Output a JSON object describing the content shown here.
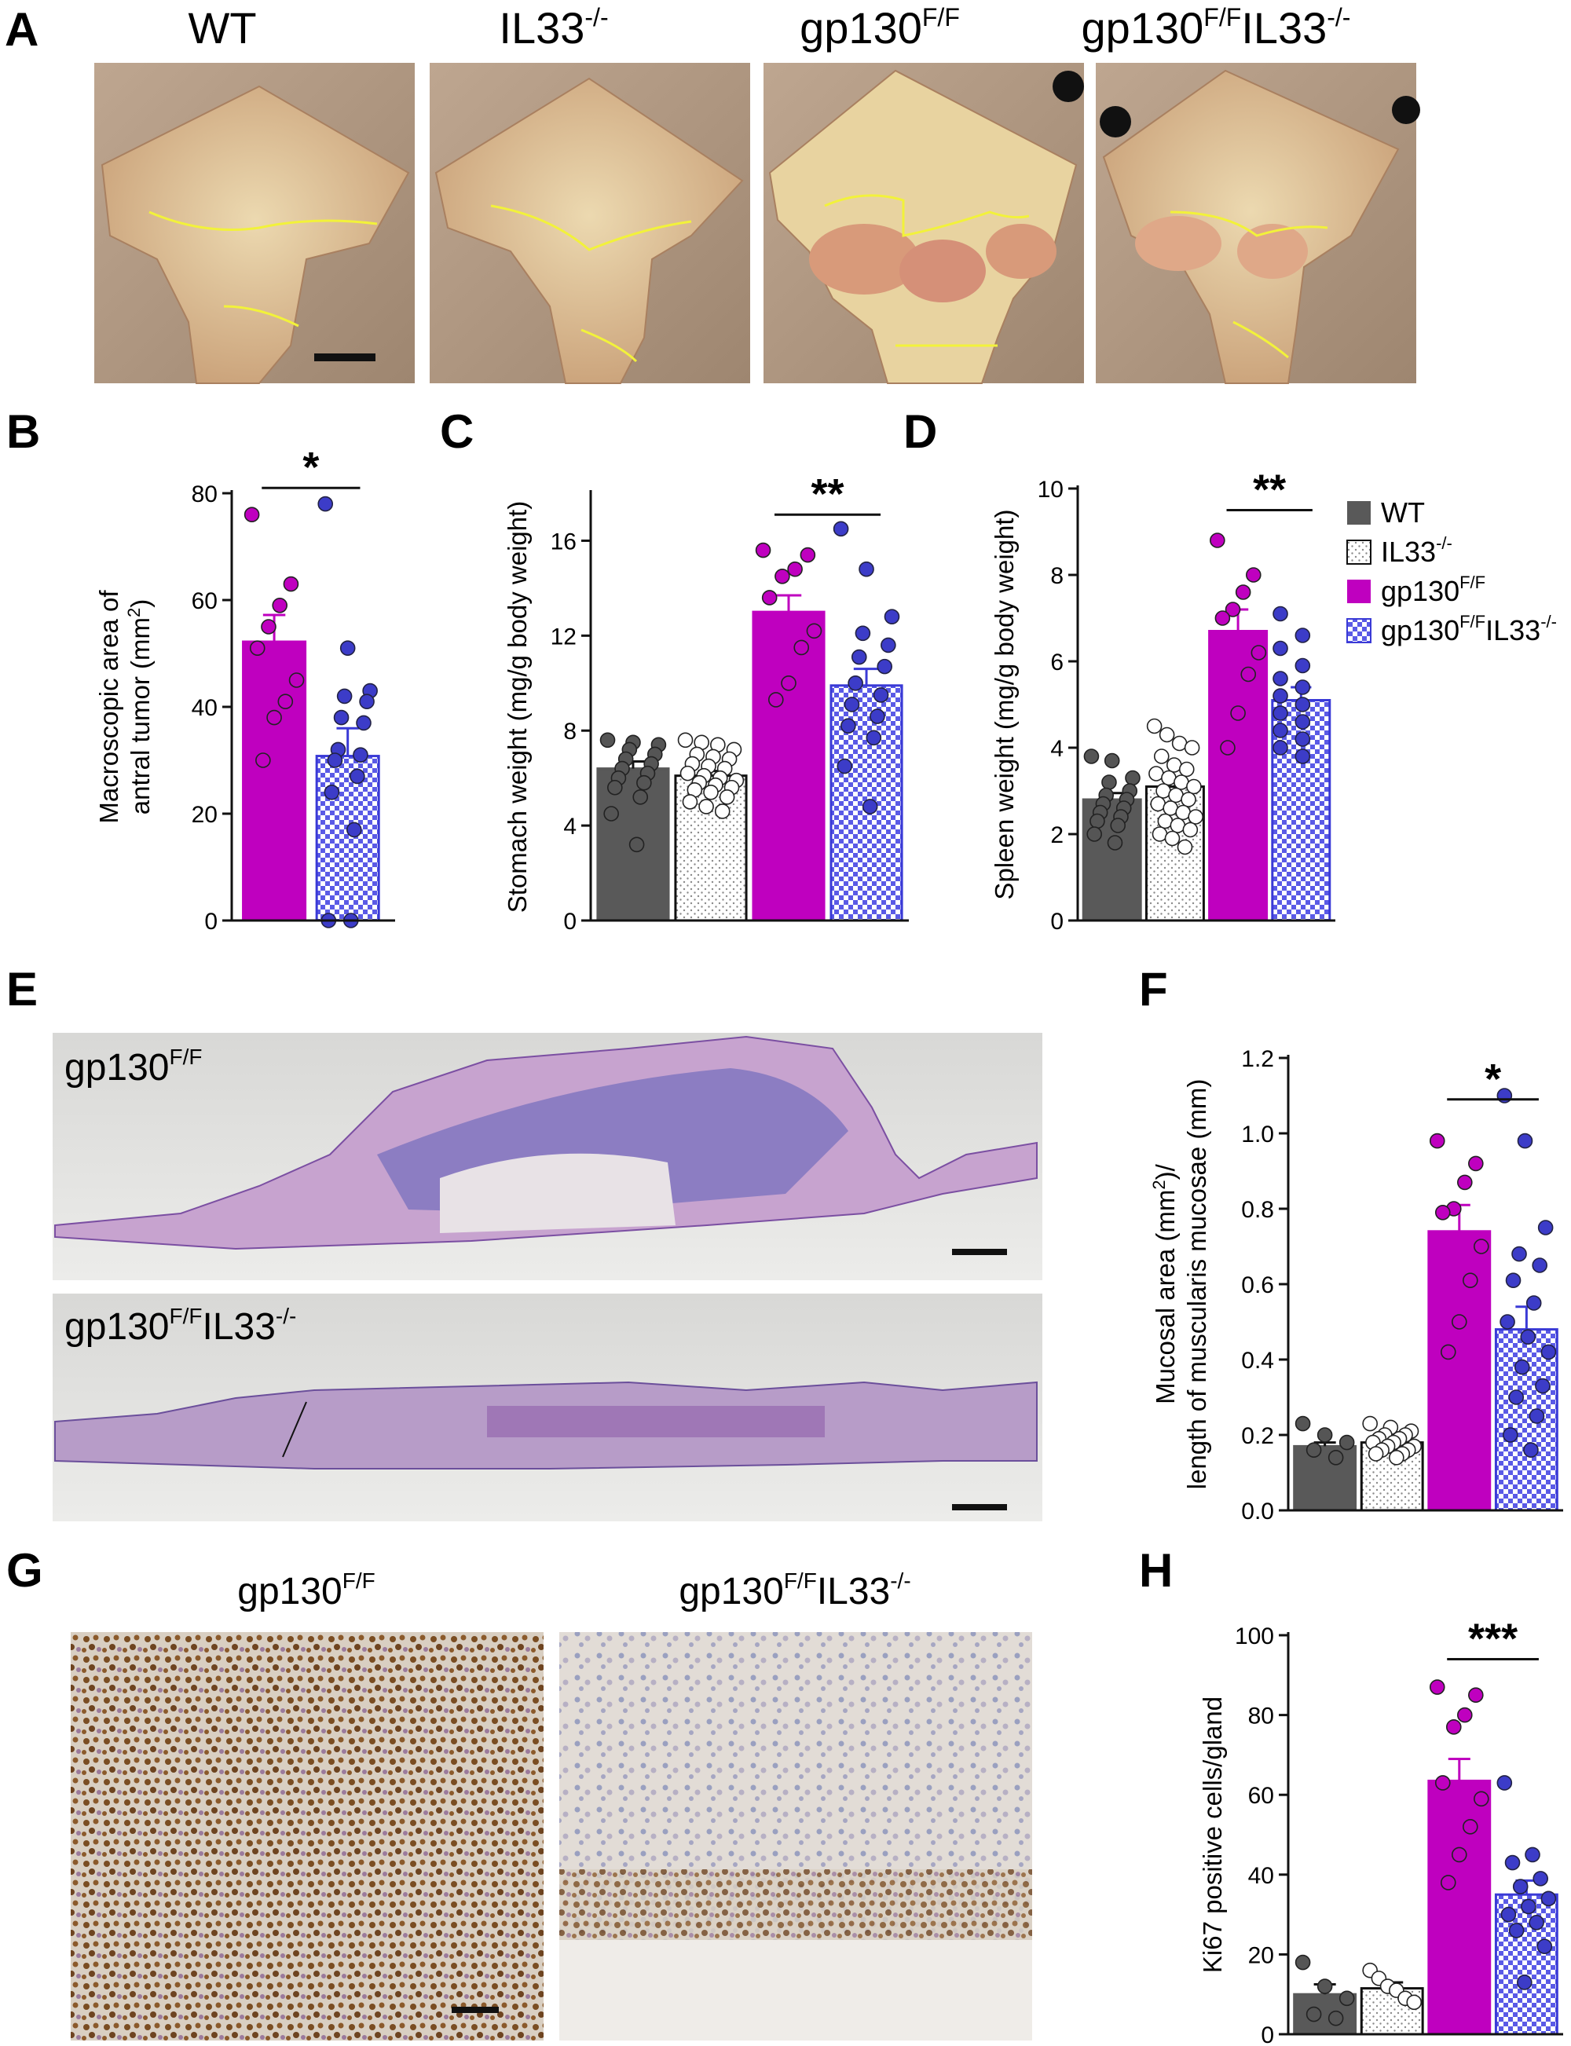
{
  "colors": {
    "wt": "#595959",
    "il33": "#ffffff",
    "gp130": "#bf00bf",
    "dbl": "#3a3ad6",
    "dbl_point": "#3c3cc8"
  },
  "panel_labels": [
    "A",
    "B",
    "C",
    "D",
    "E",
    "F",
    "G",
    "H"
  ],
  "panel_a": {
    "titles": [
      {
        "text": "WT",
        "sup": ""
      },
      {
        "text": "IL33",
        "sup": "-/-"
      },
      {
        "text": "gp130",
        "sup": "F/F"
      },
      {
        "text": "gp130",
        "sup": "F/F",
        "text2": "IL33",
        "sup2": "-/-"
      }
    ]
  },
  "panel_e": {
    "labels": [
      {
        "text": "gp130",
        "sup": "F/F"
      },
      {
        "text": "gp130",
        "sup": "F/F",
        "text2": "IL33",
        "sup2": "-/-"
      }
    ]
  },
  "panel_g": {
    "labels": [
      {
        "text": "gp130",
        "sup": "F/F"
      },
      {
        "text": "gp130",
        "sup": "F/F",
        "text2": "IL33",
        "sup2": "-/-"
      }
    ]
  },
  "legend": [
    {
      "key": "wt",
      "text": "WT",
      "sup": ""
    },
    {
      "key": "il33",
      "text": "IL33",
      "sup": "-/-"
    },
    {
      "key": "gp130",
      "text": "gp130",
      "sup": "F/F"
    },
    {
      "key": "dbl",
      "text": "gp130",
      "sup": "F/F",
      "text2": "IL33",
      "sup2": "-/-"
    }
  ],
  "chart_data": [
    {
      "panel": "B",
      "type": "bar",
      "ylabel_lines": [
        {
          "text": "Macroscopic area of"
        },
        {
          "text": "antral tumor (mm",
          "sup": "2",
          "tail": ")"
        }
      ],
      "ylim": [
        0,
        80
      ],
      "yticks": [
        0,
        20,
        40,
        60,
        80
      ],
      "tick_labels": [
        "0",
        "20",
        "40",
        "60",
        "80"
      ],
      "series": [
        {
          "key": "gp130",
          "mean": 52.2,
          "sem": 5.0,
          "points": [
            76,
            63,
            59,
            55,
            51,
            45,
            41,
            38,
            30
          ]
        },
        {
          "key": "dbl",
          "mean": 30.8,
          "sem": 5.2,
          "points": [
            78,
            51,
            43,
            42,
            41,
            38,
            37,
            32,
            31,
            30,
            27,
            24,
            17,
            0,
            0
          ]
        }
      ],
      "significance": {
        "from": 0,
        "to": 1,
        "stars": "*",
        "y": 81
      }
    },
    {
      "panel": "C",
      "type": "bar",
      "ylabel_lines": [
        {
          "text": "Stomach weight (mg/g body weight)"
        }
      ],
      "ylim": [
        0,
        18
      ],
      "yticks": [
        0,
        4,
        8,
        12,
        16
      ],
      "tick_labels": [
        "0",
        "4",
        "8",
        "12",
        "16"
      ],
      "series": [
        {
          "key": "wt",
          "mean": 6.4,
          "sem": 0.3,
          "points": [
            7.6,
            7.5,
            7.4,
            7.2,
            7.0,
            6.8,
            6.6,
            6.4,
            6.2,
            6.0,
            5.8,
            5.6,
            5.2,
            4.5,
            3.2
          ]
        },
        {
          "key": "il33",
          "mean": 6.1,
          "sem": 0.2,
          "points": [
            7.6,
            7.5,
            7.4,
            7.2,
            7.0,
            6.9,
            6.8,
            6.6,
            6.5,
            6.4,
            6.2,
            6.1,
            6.0,
            5.9,
            5.8,
            5.7,
            5.6,
            5.5,
            5.4,
            5.2,
            5.0,
            4.8,
            4.6
          ]
        },
        {
          "key": "gp130",
          "mean": 13.0,
          "sem": 0.7,
          "points": [
            15.6,
            15.4,
            14.8,
            14.5,
            13.6,
            12.2,
            11.5,
            10.0,
            9.3
          ]
        },
        {
          "key": "dbl",
          "mean": 9.9,
          "sem": 0.7,
          "points": [
            16.5,
            14.8,
            12.8,
            12.1,
            11.6,
            11.1,
            10.7,
            10.0,
            9.5,
            9.1,
            8.6,
            8.2,
            7.7,
            6.5,
            4.8
          ]
        }
      ],
      "significance": {
        "from": 2,
        "to": 3,
        "stars": "**",
        "y": 17.1
      }
    },
    {
      "panel": "D",
      "type": "bar",
      "ylabel_lines": [
        {
          "text": "Spleen weight (mg/g body weight)"
        }
      ],
      "ylim": [
        0,
        10
      ],
      "yticks": [
        0,
        2,
        4,
        6,
        8,
        10
      ],
      "tick_labels": [
        "0",
        "2",
        "4",
        "6",
        "8",
        "10"
      ],
      "series": [
        {
          "key": "wt",
          "mean": 2.8,
          "sem": 0.15,
          "points": [
            3.8,
            3.7,
            3.3,
            3.2,
            3.0,
            2.9,
            2.8,
            2.7,
            2.6,
            2.5,
            2.4,
            2.3,
            2.2,
            2.0,
            1.8
          ]
        },
        {
          "key": "il33",
          "mean": 3.1,
          "sem": 0.15,
          "points": [
            4.5,
            4.3,
            4.1,
            4.0,
            3.8,
            3.6,
            3.5,
            3.4,
            3.3,
            3.2,
            3.1,
            3.0,
            2.9,
            2.8,
            2.7,
            2.6,
            2.5,
            2.4,
            2.3,
            2.2,
            2.1,
            2.0,
            1.9,
            1.7
          ]
        },
        {
          "key": "gp130",
          "mean": 6.7,
          "sem": 0.5,
          "points": [
            8.8,
            8.0,
            7.6,
            7.2,
            7.0,
            6.2,
            5.7,
            4.8,
            4.0
          ]
        },
        {
          "key": "dbl",
          "mean": 5.1,
          "sem": 0.3,
          "points": [
            7.1,
            6.6,
            6.3,
            5.9,
            5.6,
            5.4,
            5.2,
            5.0,
            4.8,
            4.6,
            4.4,
            4.2,
            4.0,
            3.8
          ]
        }
      ],
      "significance": {
        "from": 2,
        "to": 3,
        "stars": "**",
        "y": 9.5
      }
    },
    {
      "panel": "F",
      "type": "bar",
      "ylabel_lines": [
        {
          "text": "Mucosal area (mm",
          "sup": "2",
          "tail": ")/"
        },
        {
          "text": "length of muscularis mucosae (mm)"
        }
      ],
      "ylim": [
        0,
        1.2
      ],
      "yticks": [
        0,
        0.2,
        0.4,
        0.6,
        0.8,
        1.0,
        1.2
      ],
      "tick_labels": [
        "0.0",
        "0.2",
        "0.4",
        "0.6",
        "0.8",
        "1.0",
        "1.2"
      ],
      "series": [
        {
          "key": "wt",
          "mean": 0.17,
          "sem": 0.01,
          "points": [
            0.23,
            0.2,
            0.18,
            0.16,
            0.14
          ]
        },
        {
          "key": "il33",
          "mean": 0.18,
          "sem": 0.01,
          "points": [
            0.23,
            0.22,
            0.21,
            0.2,
            0.2,
            0.19,
            0.19,
            0.18,
            0.18,
            0.17,
            0.17,
            0.16,
            0.16,
            0.15,
            0.15,
            0.14
          ]
        },
        {
          "key": "gp130",
          "mean": 0.74,
          "sem": 0.07,
          "points": [
            0.98,
            0.92,
            0.87,
            0.8,
            0.79,
            0.7,
            0.61,
            0.5,
            0.42
          ]
        },
        {
          "key": "dbl",
          "mean": 0.48,
          "sem": 0.06,
          "points": [
            1.1,
            0.98,
            0.75,
            0.68,
            0.65,
            0.61,
            0.55,
            0.5,
            0.46,
            0.42,
            0.38,
            0.33,
            0.3,
            0.25,
            0.2,
            0.16
          ]
        }
      ],
      "significance": {
        "from": 2,
        "to": 3,
        "stars": "*",
        "y": 1.09
      }
    },
    {
      "panel": "H",
      "type": "bar",
      "ylabel_lines": [
        {
          "text": "Ki67 positive cells/gland"
        }
      ],
      "ylim": [
        0,
        100
      ],
      "yticks": [
        0,
        20,
        40,
        60,
        80,
        100
      ],
      "tick_labels": [
        "0",
        "20",
        "40",
        "60",
        "80",
        "100"
      ],
      "series": [
        {
          "key": "wt",
          "mean": 10,
          "sem": 2.5,
          "points": [
            18,
            12,
            9,
            5,
            4
          ]
        },
        {
          "key": "il33",
          "mean": 11.5,
          "sem": 1.5,
          "points": [
            16,
            14,
            12,
            11,
            9,
            8
          ]
        },
        {
          "key": "gp130",
          "mean": 63.5,
          "sem": 5.5,
          "points": [
            87,
            85,
            80,
            77,
            63,
            59,
            52,
            45,
            38
          ]
        },
        {
          "key": "dbl",
          "mean": 35,
          "sem": 3.5,
          "points": [
            63,
            45,
            43,
            39,
            37,
            34,
            32,
            30,
            28,
            26,
            22,
            13
          ]
        }
      ],
      "significance": {
        "from": 2,
        "to": 3,
        "stars": "***",
        "y": 94
      }
    }
  ]
}
